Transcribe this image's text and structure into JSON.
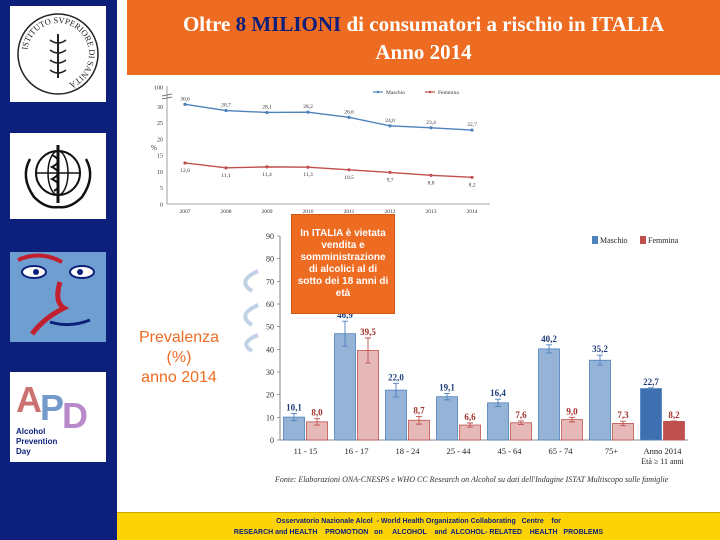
{
  "header": {
    "title_pre": "Oltre ",
    "title_highlight": "8 MILIONI",
    "title_post": " di consumatori a rischio in ITALIA",
    "subtitle": "Anno 2014"
  },
  "sidebar": {
    "logos": [
      {
        "name": "istituto-superiore-di-sanita-logo",
        "text": "ISTITUTO SVPERIORE DI SANITÀ"
      },
      {
        "name": "who-emblem-logo"
      },
      {
        "name": "face-logo"
      },
      {
        "name": "alcohol-prevention-day-logo",
        "text": "Alcohol Prevention Day"
      }
    ]
  },
  "callout": {
    "text": "In ITALIA è vietata vendita e somministrazione di alcolici al di sotto dei 18 anni di età"
  },
  "side_label": {
    "line1": "Prevalenza",
    "line2": "(%)",
    "line3": "anno 2014"
  },
  "source_note": "Fonte: Elaborazioni ONA-CNESPS e WHO CC Research on Alcohol su dati dell'Indagine ISTAT Multiscopo sulle famiglie",
  "footer": {
    "line1": "Osservatorio Nazionale Alcol  - World Health Organization Collaborating   Centre    for",
    "line2": "RESEARCH and HEALTH    PROMOTION   on     ALCOHOL    and  ALCOHOL- RELATED    HEALTH   PROBLEMS"
  },
  "colors": {
    "maschio": "#4f81bd",
    "femmina": "#c0504d",
    "maschio_fill": "#95b3d7",
    "femmina_fill": "#e6b9b8",
    "maschio_total": "#3e6fb0",
    "femmina_total": "#c0504d",
    "title_bg": "#ee6c22",
    "navy": "#0c1f7a",
    "footer_bg": "#fcd305"
  },
  "chart_data": [
    {
      "type": "line",
      "x": [
        "2007",
        "2008",
        "2009",
        "2010",
        "2011",
        "2012",
        "2013",
        "2014"
      ],
      "series": [
        {
          "name": "Maschio",
          "values": [
            30.6,
            28.7,
            28.1,
            28.2,
            26.6,
            24.0,
            23.4,
            22.7
          ],
          "labels": [
            "30,6",
            "28,7",
            "28,1",
            "28,2",
            "26,6",
            "24,0",
            "23,4",
            "22,7"
          ]
        },
        {
          "name": "Femmina",
          "values": [
            12.6,
            11.1,
            11.4,
            11.3,
            10.5,
            9.7,
            8.8,
            8.2
          ],
          "labels": [
            "12,6",
            "11,1",
            "11,4",
            "11,3",
            "10,5",
            "9,7",
            "8,8",
            "8,2"
          ]
        }
      ],
      "ylabel": "%",
      "ylim": [
        0,
        35
      ],
      "yticks": [
        "0",
        "5",
        "10",
        "15",
        "20",
        "25",
        "30",
        "100"
      ],
      "axis_break": true,
      "legend": "top-right"
    },
    {
      "type": "bar",
      "categories": [
        "11 - 15",
        "16 - 17",
        "18 - 24",
        "25 - 44",
        "45 - 64",
        "65 - 74",
        "75+",
        "Anno 2014"
      ],
      "category_sublabel": "Età ≥ 11 anni",
      "series": [
        {
          "name": "Maschio",
          "values": [
            10.1,
            46.9,
            22.0,
            19.1,
            16.4,
            40.2,
            35.2,
            22.7
          ],
          "labels": [
            "10,1",
            "46,9",
            "22,0",
            "19,1",
            "16,4",
            "40,2",
            "35,2",
            "22,7"
          ],
          "errors": [
            1.6,
            5.5,
            3.0,
            1.4,
            1.6,
            1.8,
            2.2,
            0.3
          ]
        },
        {
          "name": "Femmina",
          "values": [
            8.0,
            39.5,
            8.7,
            6.6,
            7.6,
            9.0,
            7.3,
            8.2
          ],
          "labels": [
            "8,0",
            "39,5",
            "8,7",
            "6,6",
            "7,6",
            "9,0",
            "7,3",
            "8,2"
          ],
          "errors": [
            1.4,
            5.5,
            1.7,
            0.9,
            0.8,
            1.0,
            1.0,
            0.2
          ]
        }
      ],
      "ylim": [
        0,
        90
      ],
      "yticks": [
        "0",
        "10",
        "20",
        "30",
        "40",
        "50",
        "60",
        "70",
        "80",
        "90"
      ],
      "legend": "top-right",
      "grid": false
    }
  ]
}
